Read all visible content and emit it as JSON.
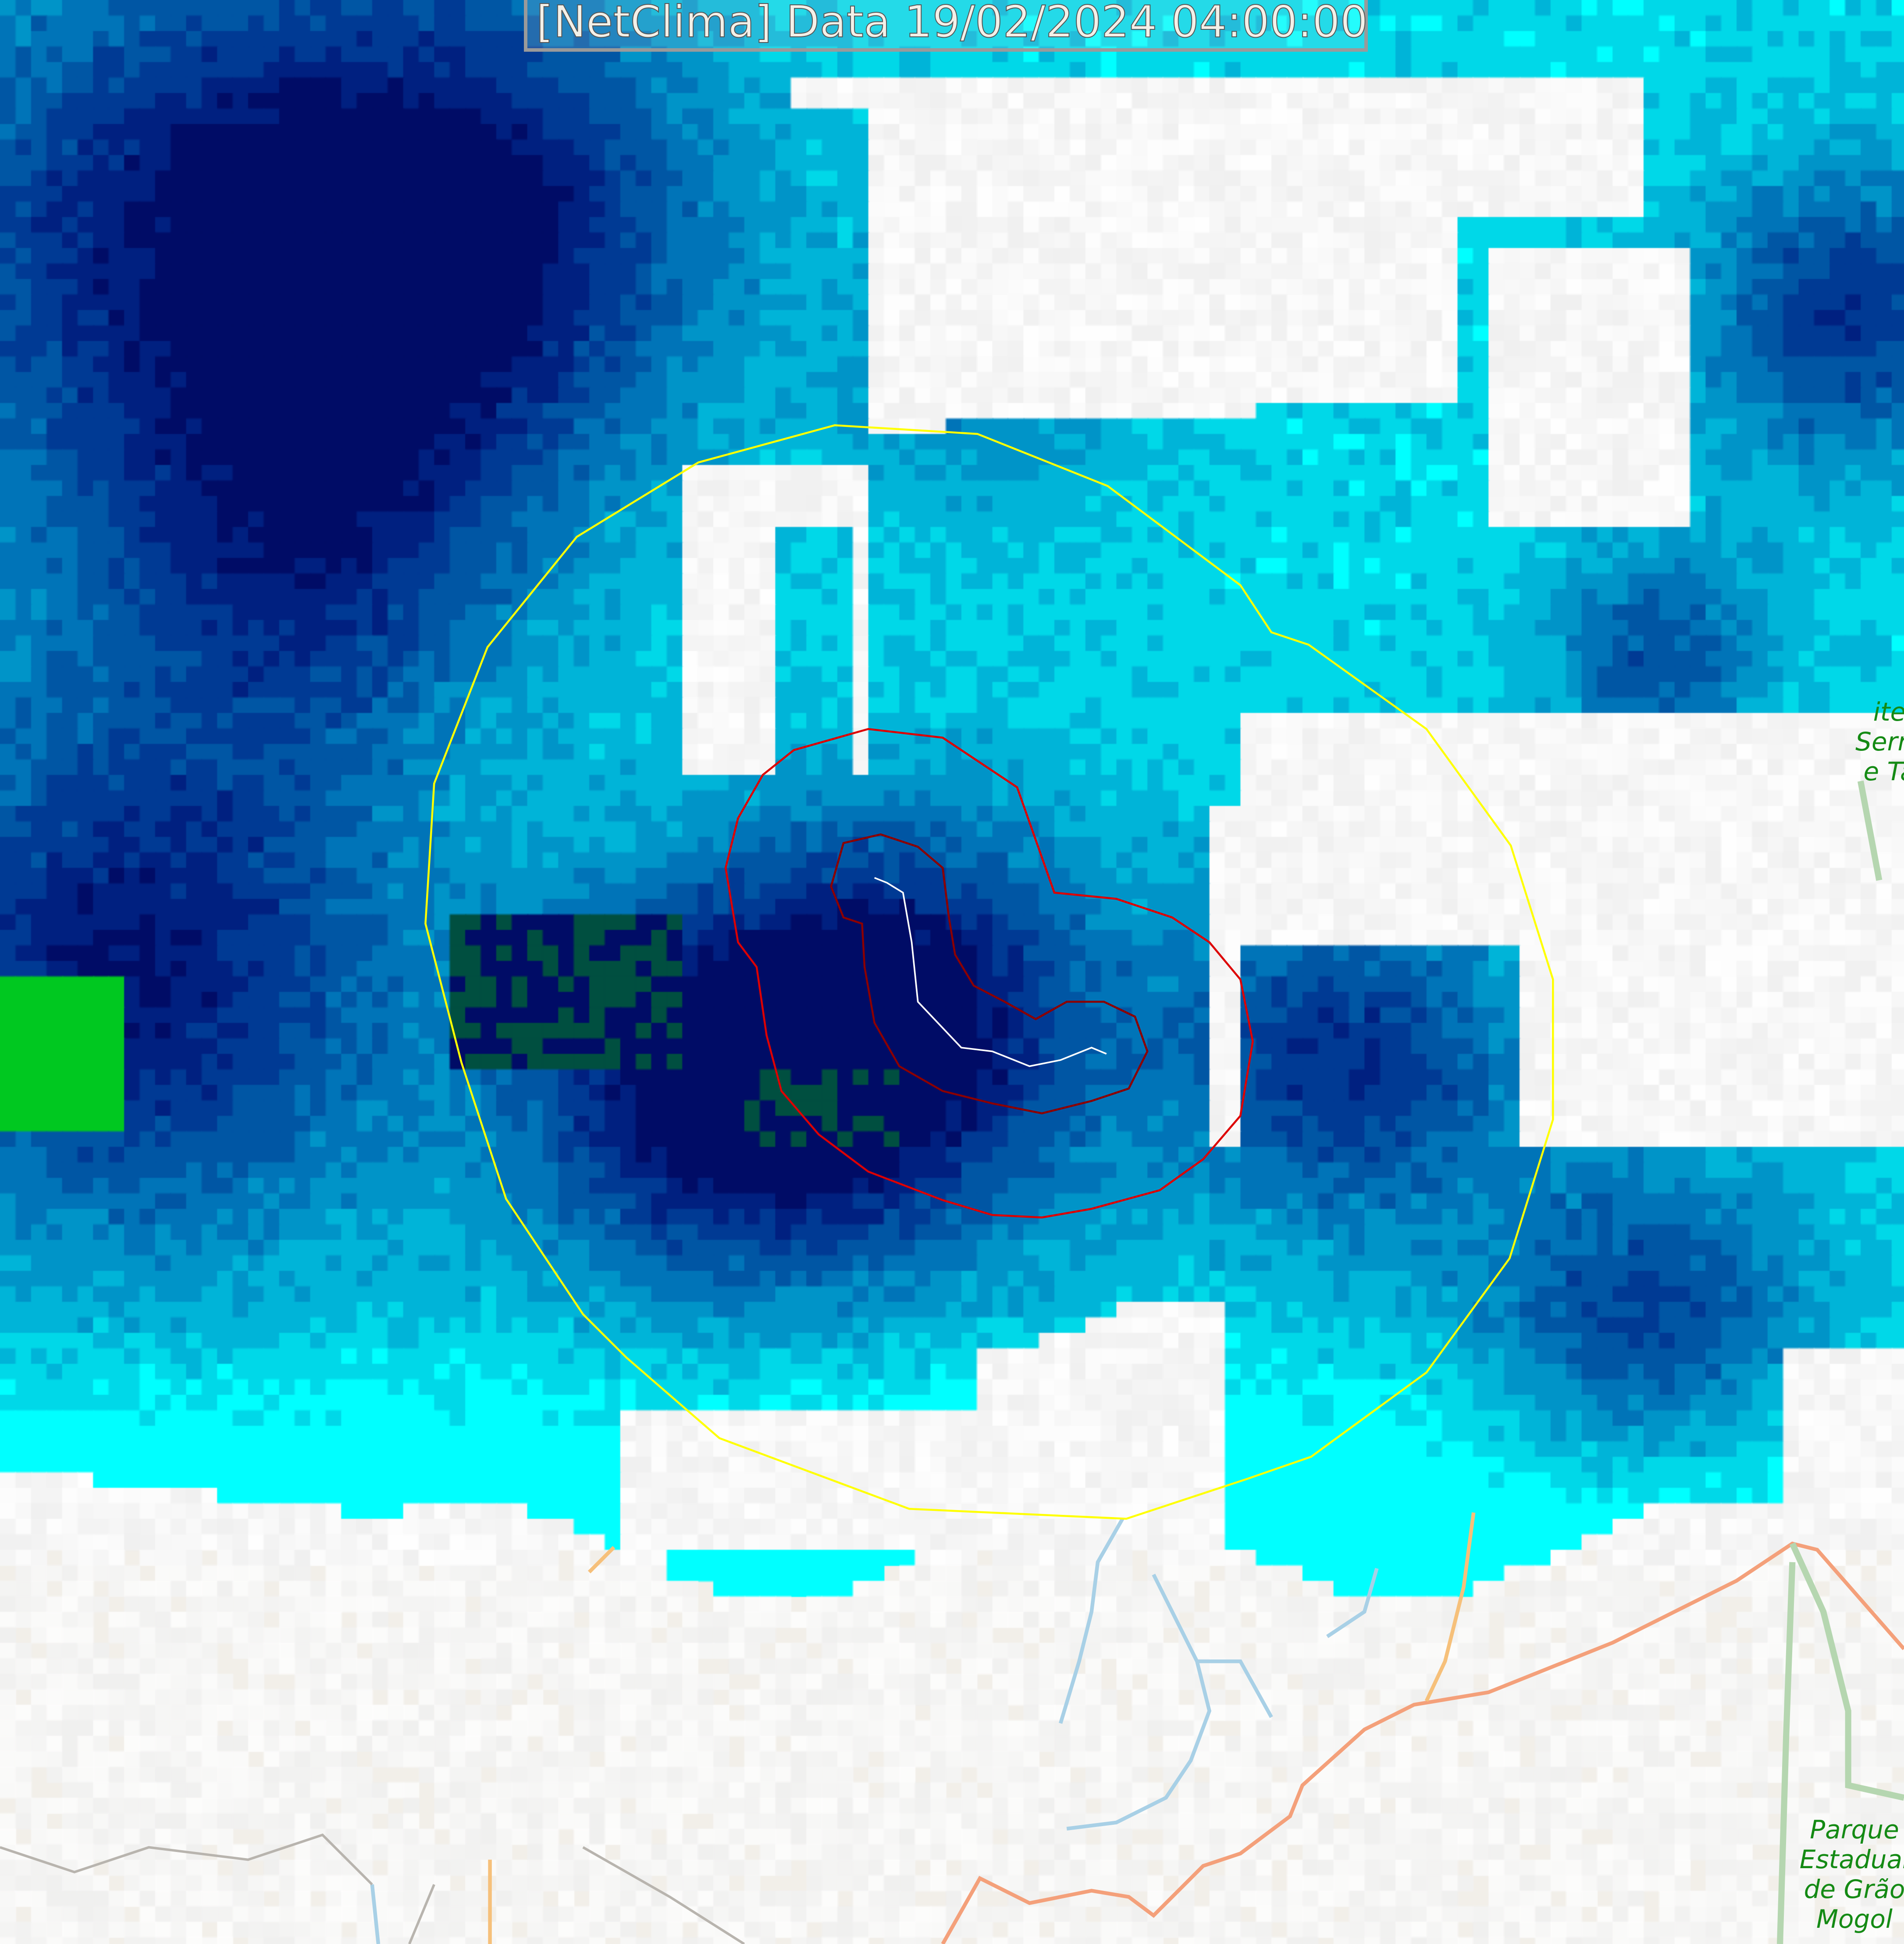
{
  "header": {
    "title": "[NetClima] Data 19/02/2024 04:00:00"
  },
  "map_labels": {
    "park_top": [
      "ite",
      "Serra",
      "e Ta"
    ],
    "park_bottom": [
      "Parque",
      "Estadual",
      "de Grão",
      "Mogol"
    ]
  },
  "colors": {
    "radius_ring": "#ffff00",
    "outer_contour": "#dd0000",
    "inner_contour": "#8b0000",
    "track": "#ffffff",
    "road": "#f4a07a",
    "river": "#a8d0e6",
    "radar_scale": [
      "#00ffff",
      "#00d8e8",
      "#00b4d8",
      "#0094c8",
      "#0074b8",
      "#0056a4",
      "#003a94",
      "#002080",
      "#000c66",
      "#004f40",
      "#00c820"
    ]
  }
}
